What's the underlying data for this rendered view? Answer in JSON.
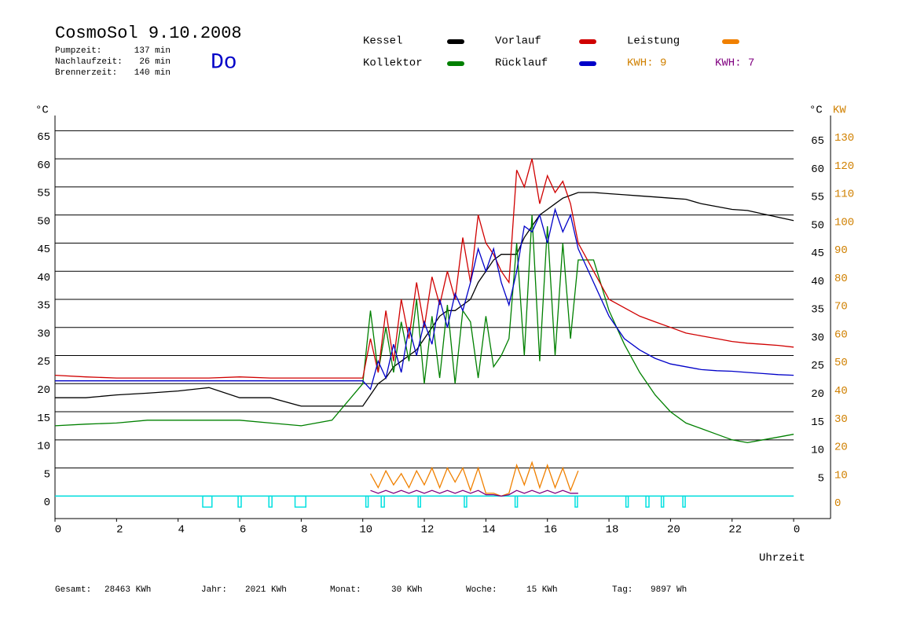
{
  "chart_data": {
    "type": "line",
    "title": "CosmoSol 9.10.2008",
    "weekday": "Do",
    "info": [
      [
        "Pumpzeit:",
        "137 min"
      ],
      [
        "Nachlaufzeit:",
        "26 min"
      ],
      [
        "Brennerzeit:",
        "140 min"
      ]
    ],
    "leistung_kwh": "KWH: 9",
    "ylabel": "°C",
    "ylabel_right": "°C",
    "y2label": "KW",
    "xlabel": "Uhrzeit",
    "footer": [
      [
        "Gesamt:",
        "28463 KWh"
      ],
      [
        "Jahr:",
        "2021 KWh"
      ],
      [
        "Monat:",
        "30 KWh"
      ],
      [
        "Woche:",
        "15 KWh"
      ],
      [
        "Tag:",
        "9897 Wh"
      ]
    ],
    "xlim": [
      0,
      25.2
    ],
    "xticks": [
      0,
      2,
      4,
      6,
      8,
      10,
      12,
      14,
      16,
      18,
      20,
      22,
      {
        "value": 24,
        "label": "0"
      }
    ],
    "ylim": [
      -4,
      67.7
    ],
    "yticks": [
      0,
      5,
      10,
      15,
      20,
      25,
      30,
      35,
      40,
      45,
      50,
      55,
      60,
      65
    ],
    "yticks_right": [
      5,
      10,
      15,
      20,
      25,
      30,
      35,
      40,
      45,
      50,
      55,
      60,
      65
    ],
    "y2lim": [
      -8,
      135.4
    ],
    "y2ticks": [
      0,
      10,
      20,
      30,
      40,
      50,
      60,
      70,
      80,
      90,
      100,
      110,
      120,
      130
    ],
    "grid": true,
    "baseline_color": "#00e0e0",
    "pump_intervals": [
      [
        4.8,
        5.1
      ],
      [
        5.95,
        6.05
      ],
      [
        6.95,
        7.05
      ],
      [
        7.8,
        8.15
      ],
      [
        10.1,
        10.15
      ],
      [
        10.6,
        10.7
      ],
      [
        11.8,
        11.85
      ],
      [
        13.3,
        13.35
      ],
      [
        14.95,
        15.0
      ],
      [
        16.9,
        16.95
      ],
      [
        18.55,
        18.6
      ],
      [
        19.2,
        19.3
      ],
      [
        19.7,
        19.75
      ],
      [
        20.4,
        20.45
      ]
    ],
    "x": [
      0,
      1,
      2,
      3,
      4,
      5,
      6,
      7,
      8,
      9,
      10,
      10.25,
      10.5,
      10.75,
      11,
      11.25,
      11.5,
      11.75,
      12,
      12.25,
      12.5,
      12.75,
      13,
      13.25,
      13.5,
      13.75,
      14,
      14.25,
      14.5,
      14.75,
      15,
      15.25,
      15.5,
      15.75,
      16,
      16.25,
      16.5,
      16.75,
      17,
      17.5,
      18,
      18.5,
      19,
      19.5,
      20,
      20.5,
      21,
      21.5,
      22,
      22.5,
      23,
      23.5,
      24
    ],
    "series": [
      {
        "name": "Kessel",
        "color": "#000000",
        "values": [
          17.5,
          17.5,
          18,
          18.3,
          18.7,
          19.3,
          17.5,
          17.5,
          16,
          16,
          16,
          18,
          20,
          21,
          23,
          24,
          25,
          26,
          28,
          30,
          32,
          33,
          33,
          34,
          35,
          38,
          40,
          42,
          43,
          43,
          43,
          46,
          48,
          50,
          51,
          52,
          53,
          53.5,
          54,
          54,
          53.8,
          53.6,
          53.4,
          53.2,
          53,
          52.8,
          52,
          51.5,
          51,
          50.8,
          50.2,
          49.6,
          49
        ]
      },
      {
        "name": "Kollektor",
        "color": "#008000",
        "values": [
          12.5,
          12.8,
          13,
          13.5,
          13.5,
          13.5,
          13.5,
          13,
          12.5,
          13.5,
          20,
          33,
          22,
          30,
          22,
          31,
          24,
          35,
          20,
          32,
          21,
          34,
          20,
          33,
          31,
          21,
          32,
          23,
          25,
          28,
          45,
          25,
          50,
          24,
          48,
          25,
          45,
          28,
          42,
          42,
          33,
          27,
          22,
          18,
          15,
          13,
          12,
          11,
          10,
          9.5,
          10,
          10.5,
          11
        ]
      },
      {
        "name": "Vorlauf",
        "color": "#d00000",
        "values": [
          21.5,
          21.2,
          21,
          21,
          21,
          21,
          21.2,
          21,
          21,
          21,
          21,
          28,
          22,
          33,
          24,
          35,
          28,
          38,
          30,
          39,
          34,
          40,
          35,
          46,
          38,
          50,
          45,
          43,
          40,
          38,
          58,
          55,
          60,
          52,
          57,
          54,
          56,
          52,
          45,
          40,
          35,
          33.5,
          32,
          31,
          30,
          29,
          28.5,
          28,
          27.5,
          27.2,
          27,
          26.8,
          26.5
        ]
      },
      {
        "name": "Rücklauf",
        "color": "#0000c8",
        "values": [
          20.5,
          20.5,
          20.5,
          20.5,
          20.5,
          20.5,
          20.5,
          20.5,
          20.5,
          20.5,
          20.5,
          19,
          24,
          21,
          27,
          22,
          30,
          25,
          31,
          27,
          35,
          30,
          36,
          33,
          38,
          44,
          40,
          44,
          38,
          34,
          40,
          48,
          47,
          50,
          45,
          51,
          47,
          50,
          44,
          38,
          32,
          28,
          26,
          24.5,
          23.5,
          23,
          22.5,
          22.3,
          22.2,
          22,
          21.8,
          21.6,
          21.5
        ]
      },
      {
        "name": "Leistung",
        "color": "#f08000",
        "axis": "y2",
        "values": [
          null,
          null,
          null,
          null,
          null,
          null,
          null,
          null,
          null,
          null,
          null,
          8,
          3,
          9,
          4,
          8,
          3,
          9,
          4,
          10,
          3,
          10,
          5,
          10,
          2,
          10,
          1,
          1,
          0,
          1,
          11,
          4,
          12,
          3,
          11,
          3,
          10,
          2,
          9,
          null,
          null,
          null,
          null,
          null,
          null,
          null,
          null,
          null,
          null,
          null,
          null,
          null,
          null
        ]
      },
      {
        "name": "KWH: 7",
        "color": "#800080",
        "axis": "y2",
        "values": [
          null,
          null,
          null,
          null,
          null,
          null,
          null,
          null,
          null,
          null,
          null,
          2,
          1,
          2,
          1,
          2,
          1,
          2,
          1,
          2,
          1,
          2,
          1,
          2,
          1,
          2,
          0.5,
          0.5,
          0,
          0.5,
          2,
          1,
          2,
          1,
          2,
          1,
          2,
          1,
          1,
          null,
          null,
          null,
          null,
          null,
          null,
          null,
          null,
          null,
          null,
          null,
          null,
          null,
          null
        ]
      }
    ]
  }
}
